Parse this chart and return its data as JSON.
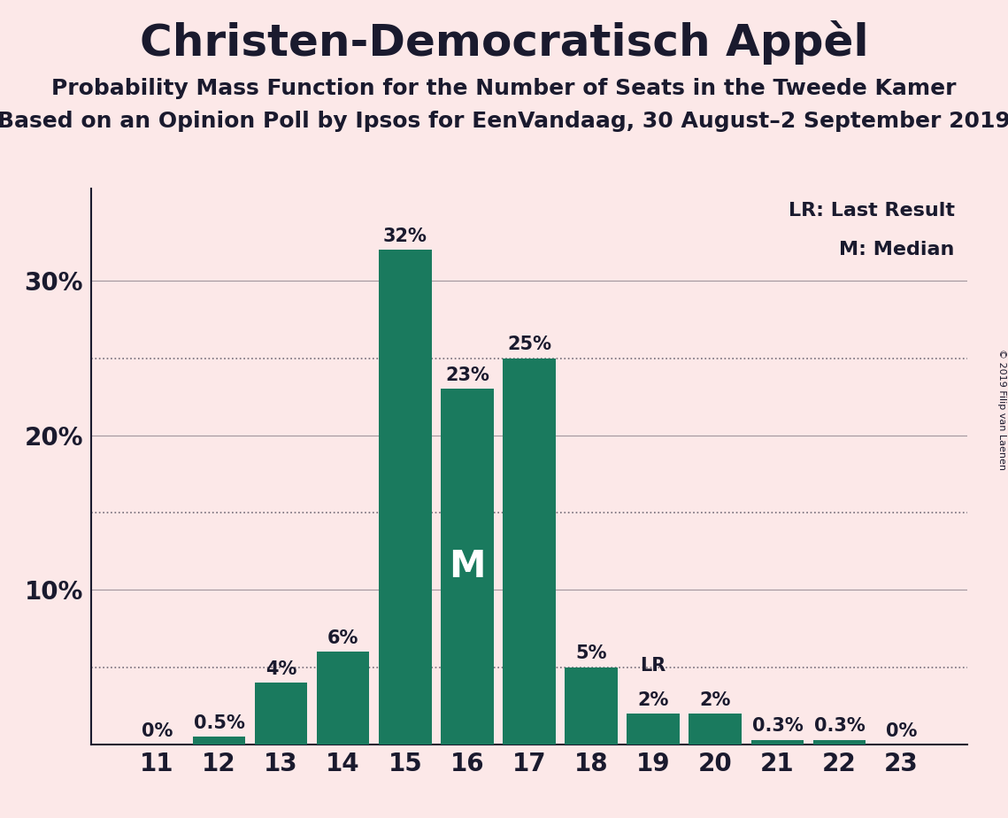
{
  "title": "Christen-Democratisch Appèl",
  "subtitle1": "Probability Mass Function for the Number of Seats in the Tweede Kamer",
  "subtitle2": "Based on an Opinion Poll by Ipsos for EenVandaag, 30 August–2 September 2019",
  "copyright": "© 2019 Filip van Laenen",
  "seats": [
    11,
    12,
    13,
    14,
    15,
    16,
    17,
    18,
    19,
    20,
    21,
    22,
    23
  ],
  "probabilities": [
    0.0,
    0.5,
    4.0,
    6.0,
    32.0,
    23.0,
    25.0,
    5.0,
    2.0,
    2.0,
    0.3,
    0.3,
    0.0
  ],
  "bar_labels": [
    "0%",
    "0.5%",
    "4%",
    "6%",
    "32%",
    "23%",
    "25%",
    "5%",
    "2%",
    "2%",
    "0.3%",
    "0.3%",
    "0%"
  ],
  "bar_color": "#1a7a5e",
  "background_color": "#fce8e8",
  "text_color": "#1a1a2e",
  "median_seat": 16,
  "last_result_seat": 19,
  "bar_label_fontsize": 15,
  "axis_fontsize": 20,
  "title_fontsize": 36,
  "subtitle_fontsize": 18,
  "legend_fontsize": 16,
  "median_label_fontsize": 30,
  "lr_label_fontsize": 15,
  "copyright_fontsize": 8,
  "ylim": [
    0,
    36
  ],
  "solid_hlines": [
    10,
    20,
    30
  ],
  "dotted_hlines": [
    5,
    15,
    25
  ],
  "ytick_positions": [
    10,
    20,
    30
  ],
  "ytick_labels": [
    "10%",
    "20%",
    "30%"
  ]
}
